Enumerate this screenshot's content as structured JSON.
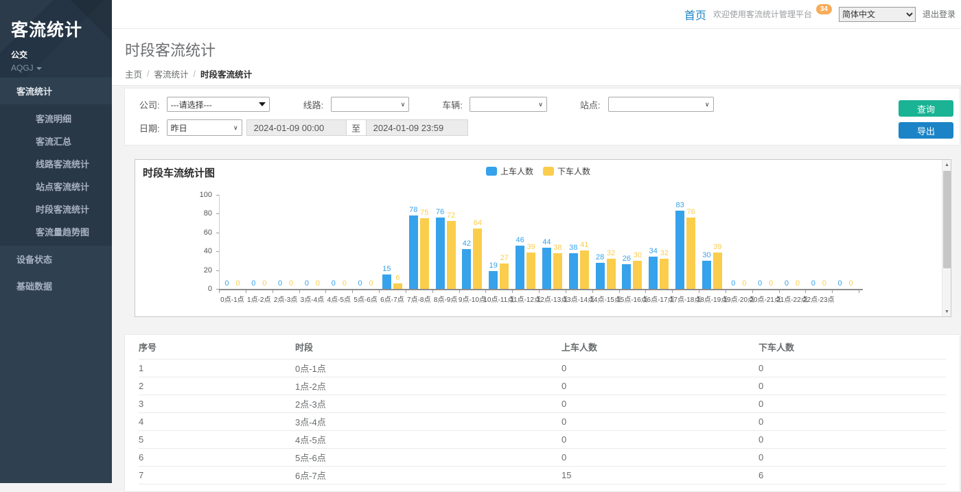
{
  "app": {
    "title": "客流统计",
    "org": "公交",
    "user": "AQGJ"
  },
  "sidebar": {
    "items": [
      {
        "id": "passenger-stats",
        "label": "客流统计",
        "active": true,
        "children": [
          {
            "id": "passenger-detail",
            "label": "客流明细"
          },
          {
            "id": "passenger-summary",
            "label": "客流汇总"
          },
          {
            "id": "line-passenger-stats",
            "label": "线路客流统计"
          },
          {
            "id": "station-passenger-stats",
            "label": "站点客流统计"
          },
          {
            "id": "period-passenger-stats",
            "label": "时段客流统计"
          },
          {
            "id": "passenger-trend-chart",
            "label": "客流量趋势图"
          }
        ]
      },
      {
        "id": "device-status",
        "label": "设备状态",
        "children": []
      },
      {
        "id": "base-data",
        "label": "基础数据",
        "children": []
      }
    ]
  },
  "topbar": {
    "home": "首页",
    "welcome": "欢迎使用客流统计管理平台",
    "badge": "34",
    "language": "简体中文",
    "logout": "退出登录"
  },
  "page": {
    "title": "时段客流统计",
    "breadcrumb": [
      "主页",
      "客流统计",
      "时段客流统计"
    ]
  },
  "filters": {
    "company_label": "公司:",
    "company_value": "---请选择---",
    "line_label": "线路:",
    "line_value": "",
    "vehicle_label": "车辆:",
    "vehicle_value": "",
    "station_label": "站点:",
    "station_value": "",
    "date_label": "日期:",
    "date_preset": "昨日",
    "date_start": "2024-01-09 00:00",
    "date_to_label": "至",
    "date_end": "2024-01-09 23:59",
    "query_button": "查询",
    "export_button": "导出"
  },
  "chart_data": {
    "type": "bar",
    "title": "时段车流统计图",
    "categories": [
      "0点-1点",
      "1点-2点",
      "2点-3点",
      "3点-4点",
      "4点-5点",
      "5点-6点",
      "6点-7点",
      "7点-8点",
      "8点-9点",
      "9点-10点",
      "10点-11点",
      "11点-12点",
      "12点-13点",
      "13点-14点",
      "14点-15点",
      "15点-16点",
      "16点-17点",
      "17点-18点",
      "18点-19点",
      "19点-20点",
      "20点-21点",
      "21点-22点",
      "22点-23点",
      ""
    ],
    "series": [
      {
        "name": "上车人数",
        "color": "#36a2eb",
        "values": [
          0,
          0,
          0,
          0,
          0,
          0,
          15,
          78,
          76,
          42,
          19,
          46,
          44,
          38,
          28,
          26,
          34,
          83,
          30,
          0,
          0,
          0,
          0,
          0
        ]
      },
      {
        "name": "下车人数",
        "color": "#fbcd4c",
        "values": [
          0,
          0,
          0,
          0,
          0,
          0,
          6,
          75,
          72,
          64,
          27,
          39,
          38,
          41,
          32,
          30,
          32,
          76,
          39,
          0,
          0,
          0,
          0,
          0
        ]
      }
    ],
    "ylim": [
      0,
      100
    ],
    "yticks": [
      0,
      20,
      40,
      60,
      80,
      100
    ],
    "xlabel": "",
    "ylabel": "",
    "legend_position": "top-center",
    "grid": false
  },
  "table": {
    "columns": [
      "序号",
      "时段",
      "上车人数",
      "下车人数"
    ],
    "rows": [
      [
        "1",
        "0点-1点",
        "0",
        "0"
      ],
      [
        "2",
        "1点-2点",
        "0",
        "0"
      ],
      [
        "3",
        "2点-3点",
        "0",
        "0"
      ],
      [
        "4",
        "3点-4点",
        "0",
        "0"
      ],
      [
        "5",
        "4点-5点",
        "0",
        "0"
      ],
      [
        "6",
        "5点-6点",
        "0",
        "0"
      ],
      [
        "7",
        "6点-7点",
        "15",
        "6"
      ]
    ]
  },
  "colors": {
    "sidebar_bg": "#2f4050",
    "submenu_bg": "#293846",
    "content_bg": "#f3f3f4",
    "query_green": "#1ab394",
    "export_blue": "#1c84c6",
    "badge_orange": "#f8ac59",
    "bar_blue": "#36a2eb",
    "bar_yellow": "#fbcd4c",
    "home_blue": "#1c84c6"
  }
}
